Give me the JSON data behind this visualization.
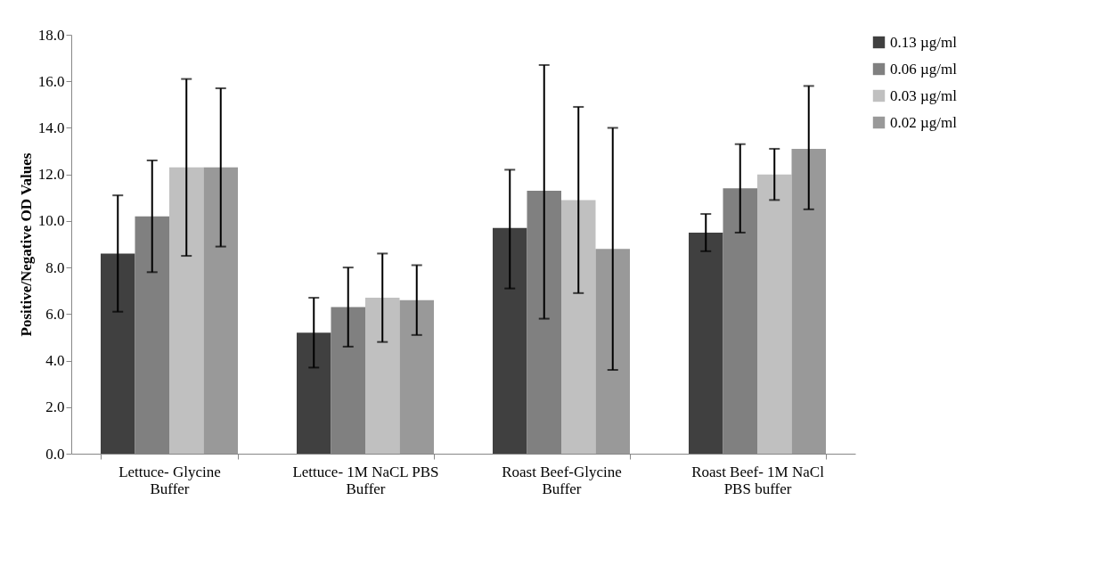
{
  "chart_data": {
    "type": "bar",
    "ylabel": "Positive/Negative OD Values",
    "categories": [
      "Lettuce- Glycine Buffer",
      "Lettuce- 1M NaCL PBS Buffer",
      "Roast Beef-Glycine Buffer",
      "Roast Beef- 1M NaCl PBS buffer"
    ],
    "series": [
      {
        "name": "0.13 µg/ml",
        "color": "#404040",
        "values": [
          8.6,
          5.2,
          9.7,
          9.5
        ],
        "errors": [
          [
            6.1,
            11.1
          ],
          [
            3.7,
            6.7
          ],
          [
            7.1,
            12.2
          ],
          [
            8.7,
            10.3
          ]
        ]
      },
      {
        "name": "0.06 µg/ml",
        "color": "#808080",
        "values": [
          10.2,
          6.3,
          11.3,
          11.4
        ],
        "errors": [
          [
            7.8,
            12.6
          ],
          [
            4.6,
            8.0
          ],
          [
            5.8,
            16.7
          ],
          [
            9.5,
            13.3
          ]
        ]
      },
      {
        "name": "0.03 µg/ml",
        "color": "#c0c0c0",
        "values": [
          12.3,
          6.7,
          10.9,
          12.0
        ],
        "errors": [
          [
            8.5,
            16.1
          ],
          [
            4.8,
            8.6
          ],
          [
            6.9,
            14.9
          ],
          [
            10.9,
            13.1
          ]
        ]
      },
      {
        "name": "0.02 µg/ml",
        "color": "#999999",
        "values": [
          12.3,
          6.6,
          8.8,
          13.1
        ],
        "errors": [
          [
            8.9,
            15.7
          ],
          [
            5.1,
            8.1
          ],
          [
            3.6,
            14.0
          ],
          [
            10.5,
            15.8
          ]
        ]
      }
    ],
    "ylim": [
      0,
      18
    ],
    "yticks": [
      {
        "value": 0,
        "label": "0.0"
      },
      {
        "value": 2,
        "label": "2.0"
      },
      {
        "value": 4,
        "label": "4.0"
      },
      {
        "value": 6,
        "label": "6.0"
      },
      {
        "value": 8,
        "label": "8.0"
      },
      {
        "value": 10,
        "label": "10.0"
      },
      {
        "value": 12,
        "label": "12.0"
      },
      {
        "value": 14,
        "label": "14.0"
      },
      {
        "value": 16,
        "label": "16.0"
      },
      {
        "value": 18,
        "label": "18.0"
      }
    ],
    "grid": false,
    "legend": "right"
  }
}
